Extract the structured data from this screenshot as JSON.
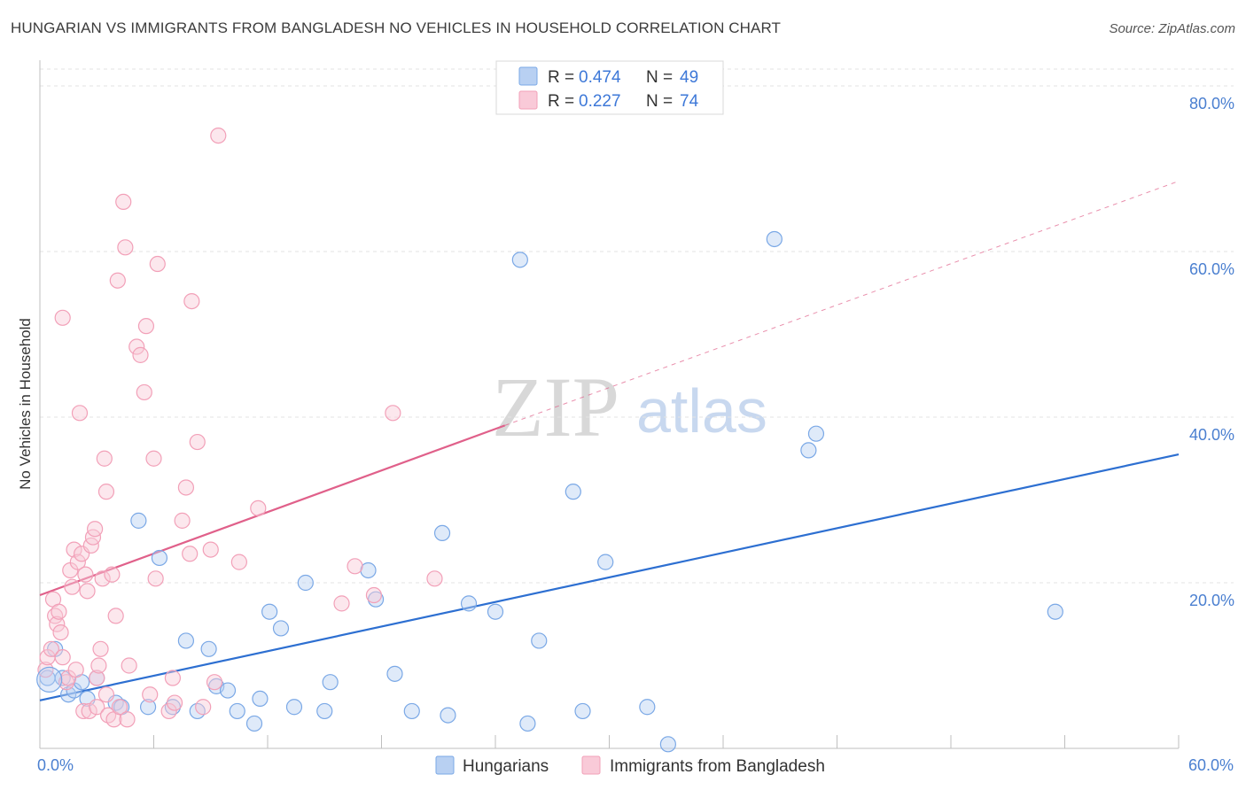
{
  "header": {
    "title": "HUNGARIAN VS IMMIGRANTS FROM BANGLADESH NO VEHICLES IN HOUSEHOLD CORRELATION CHART",
    "source": "Source: ZipAtlas.com"
  },
  "watermark": {
    "zip": "ZIP",
    "atlas": "atlas"
  },
  "chart_data": {
    "type": "scatter",
    "xlabel": "",
    "ylabel": "No Vehicles in Household",
    "xlim": [
      0,
      60
    ],
    "ylim": [
      0,
      80
    ],
    "x_ticks": [
      0,
      6,
      12,
      18,
      24,
      30,
      36,
      42,
      48,
      54,
      60
    ],
    "x_tick_labels": {
      "left": "0.0%",
      "right": "60.0%"
    },
    "y_ticks": [
      20,
      40,
      60,
      80
    ],
    "y_tick_labels": [
      "20.0%",
      "40.0%",
      "60.0%",
      "80.0%"
    ],
    "grid": true,
    "legend_position": "top-center",
    "top_legend": {
      "r_label": "R =",
      "n_label": "N =",
      "rows": [
        {
          "r": "0.474",
          "n": "49"
        },
        {
          "r": "0.227",
          "n": "74"
        }
      ]
    },
    "series": [
      {
        "name": "Hungarians",
        "color": "#7aa8e6",
        "fill": "#b8d0f2",
        "line_color": "#2d6fd1",
        "trend": {
          "x": [
            0,
            60
          ],
          "y": [
            5.8,
            35.5
          ],
          "dashed_extension": false
        },
        "points": [
          [
            0.4,
            8.5
          ],
          [
            0.8,
            12.0
          ],
          [
            1.2,
            8.5
          ],
          [
            1.5,
            6.5
          ],
          [
            1.8,
            7.0
          ],
          [
            2.2,
            8.0
          ],
          [
            2.5,
            6.0
          ],
          [
            3.0,
            8.5
          ],
          [
            4.0,
            5.5
          ],
          [
            4.3,
            5.0
          ],
          [
            5.2,
            27.5
          ],
          [
            5.7,
            5.0
          ],
          [
            6.3,
            23.0
          ],
          [
            7.0,
            5.0
          ],
          [
            7.7,
            13.0
          ],
          [
            8.3,
            4.5
          ],
          [
            8.9,
            12.0
          ],
          [
            9.3,
            7.5
          ],
          [
            9.9,
            7.0
          ],
          [
            10.4,
            4.5
          ],
          [
            11.3,
            3.0
          ],
          [
            11.6,
            6.0
          ],
          [
            12.1,
            16.5
          ],
          [
            12.7,
            14.5
          ],
          [
            13.4,
            5.0
          ],
          [
            14.0,
            20.0
          ],
          [
            15.0,
            4.5
          ],
          [
            15.3,
            8.0
          ],
          [
            17.3,
            21.5
          ],
          [
            17.7,
            18.0
          ],
          [
            18.7,
            9.0
          ],
          [
            19.6,
            4.5
          ],
          [
            21.2,
            26.0
          ],
          [
            21.5,
            4.0
          ],
          [
            22.6,
            17.5
          ],
          [
            24.0,
            16.5
          ],
          [
            25.3,
            59.0
          ],
          [
            25.7,
            3.0
          ],
          [
            26.3,
            13.0
          ],
          [
            28.1,
            31.0
          ],
          [
            28.6,
            4.5
          ],
          [
            29.8,
            22.5
          ],
          [
            32.0,
            5.0
          ],
          [
            33.1,
            0.5
          ],
          [
            38.7,
            61.5
          ],
          [
            40.5,
            36.0
          ],
          [
            40.9,
            38.0
          ],
          [
            53.5,
            16.5
          ]
        ]
      },
      {
        "name": "Immigrants from Bangladesh",
        "color": "#f2a0b8",
        "fill": "#f9cad8",
        "line_color": "#e0608a",
        "trend": {
          "x": [
            0,
            24.5,
            60
          ],
          "y": [
            18.5,
            39.0,
            68.5
          ],
          "dashed_extension": true
        },
        "points": [
          [
            0.3,
            9.5
          ],
          [
            0.4,
            11.0
          ],
          [
            0.6,
            12.0
          ],
          [
            0.7,
            18.0
          ],
          [
            0.8,
            16.0
          ],
          [
            0.9,
            15.0
          ],
          [
            1.0,
            16.5
          ],
          [
            1.1,
            14.0
          ],
          [
            1.2,
            11.0
          ],
          [
            1.2,
            52.0
          ],
          [
            1.4,
            8.0
          ],
          [
            1.5,
            8.5
          ],
          [
            1.6,
            21.5
          ],
          [
            1.7,
            19.5
          ],
          [
            1.8,
            24.0
          ],
          [
            1.9,
            9.5
          ],
          [
            2.0,
            22.5
          ],
          [
            2.1,
            40.5
          ],
          [
            2.2,
            23.5
          ],
          [
            2.3,
            4.5
          ],
          [
            2.4,
            21.0
          ],
          [
            2.5,
            19.0
          ],
          [
            2.6,
            4.5
          ],
          [
            2.7,
            24.5
          ],
          [
            2.8,
            25.5
          ],
          [
            2.9,
            26.5
          ],
          [
            3.0,
            8.5
          ],
          [
            3.0,
            5.0
          ],
          [
            3.1,
            10.0
          ],
          [
            3.2,
            12.0
          ],
          [
            3.3,
            20.5
          ],
          [
            3.4,
            35.0
          ],
          [
            3.5,
            6.5
          ],
          [
            3.5,
            31.0
          ],
          [
            3.6,
            4.0
          ],
          [
            3.8,
            21.0
          ],
          [
            3.9,
            3.5
          ],
          [
            4.0,
            16.0
          ],
          [
            4.1,
            56.5
          ],
          [
            4.2,
            5.0
          ],
          [
            4.4,
            66.0
          ],
          [
            4.5,
            60.5
          ],
          [
            4.6,
            3.5
          ],
          [
            4.7,
            10.0
          ],
          [
            5.1,
            48.5
          ],
          [
            5.3,
            47.5
          ],
          [
            5.5,
            43.0
          ],
          [
            5.6,
            51.0
          ],
          [
            5.8,
            6.5
          ],
          [
            6.0,
            35.0
          ],
          [
            6.1,
            20.5
          ],
          [
            6.2,
            58.5
          ],
          [
            6.8,
            4.5
          ],
          [
            7.0,
            8.5
          ],
          [
            7.1,
            5.5
          ],
          [
            7.5,
            27.5
          ],
          [
            7.7,
            31.5
          ],
          [
            7.9,
            23.5
          ],
          [
            8.0,
            54.0
          ],
          [
            8.3,
            37.0
          ],
          [
            8.6,
            5.0
          ],
          [
            9.0,
            24.0
          ],
          [
            9.2,
            8.0
          ],
          [
            9.4,
            74.0
          ],
          [
            10.5,
            22.5
          ],
          [
            11.5,
            29.0
          ],
          [
            15.9,
            17.5
          ],
          [
            16.6,
            22.0
          ],
          [
            17.6,
            18.5
          ],
          [
            18.6,
            40.5
          ],
          [
            20.8,
            20.5
          ]
        ]
      }
    ]
  }
}
